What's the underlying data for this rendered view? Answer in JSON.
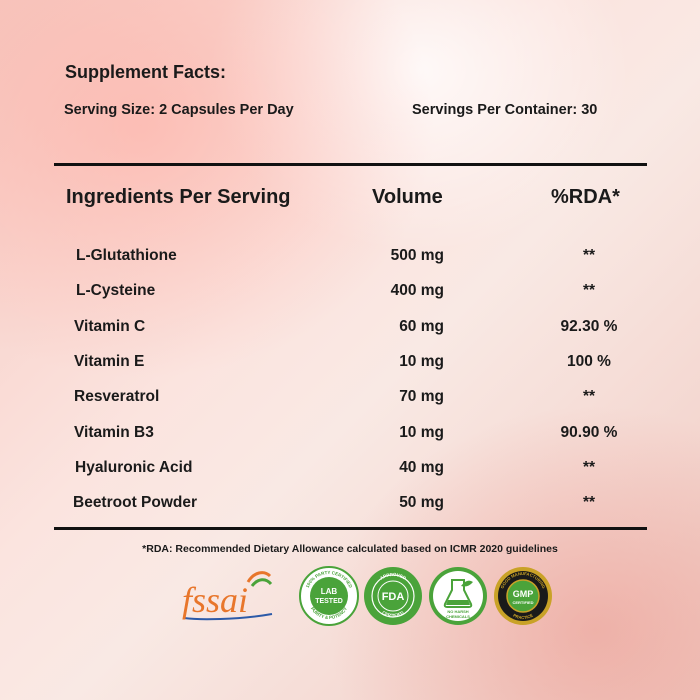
{
  "panel": {
    "title": "Supplement Facts:",
    "serving_size": "Serving Size: 2 Capsules Per Day",
    "servings_per_container": "Servings Per Container: 30"
  },
  "table": {
    "headers": {
      "ingredient": "Ingredients Per Serving",
      "volume": "Volume",
      "rda": "%RDA*"
    },
    "rows": [
      {
        "name": "L-Glutathione",
        "volume": "500 mg",
        "rda": "**"
      },
      {
        "name": "L-Cysteine",
        "volume": "400 mg",
        "rda": "**"
      },
      {
        "name": "Vitamin C",
        "volume": "60 mg",
        "rda": "92.30 %"
      },
      {
        "name": "Vitamin E",
        "volume": "10 mg",
        "rda": "100 %"
      },
      {
        "name": "Resveratrol",
        "volume": "70 mg",
        "rda": "**"
      },
      {
        "name": "Vitamin B3",
        "volume": "10 mg",
        "rda": "90.90 %"
      },
      {
        "name": "Hyaluronic Acid",
        "volume": "40 mg",
        "rda": "**"
      },
      {
        "name": "Beetroot Powder",
        "volume": "50 mg",
        "rda": "**"
      }
    ]
  },
  "footnote": "*RDA: Recommended Dietary Allowance calculated based on ICMR 2020 guidelines",
  "badges": {
    "fssai": {
      "text": "fssai",
      "icon": "fssai-logo"
    },
    "lab_tested": {
      "center": "LAB TESTED",
      "ring_top": "100% PARTY CERTIFIED",
      "ring_bottom": "PURITY & POTENCY",
      "icon": "lab-tested-badge"
    },
    "fda": {
      "center": "FDA",
      "ring_top": "APPROVED",
      "ring_bottom": "CERTIFIED",
      "icon": "fda-badge"
    },
    "no_harsh": {
      "center": "NO HARSH CHEMICALS",
      "icon": "no-harsh-chemicals-badge"
    },
    "gmp": {
      "center": "GMP",
      "sub": "CERTIFIED",
      "ring_top": "GOOD MANUFACTURING",
      "ring_bottom": "PRACTICE",
      "icon": "gmp-badge"
    }
  },
  "colors": {
    "green": "#4aa33a",
    "fssai_orange": "#e8762b",
    "fssai_blue": "#2c5aa8",
    "gold": "#c9a227"
  }
}
